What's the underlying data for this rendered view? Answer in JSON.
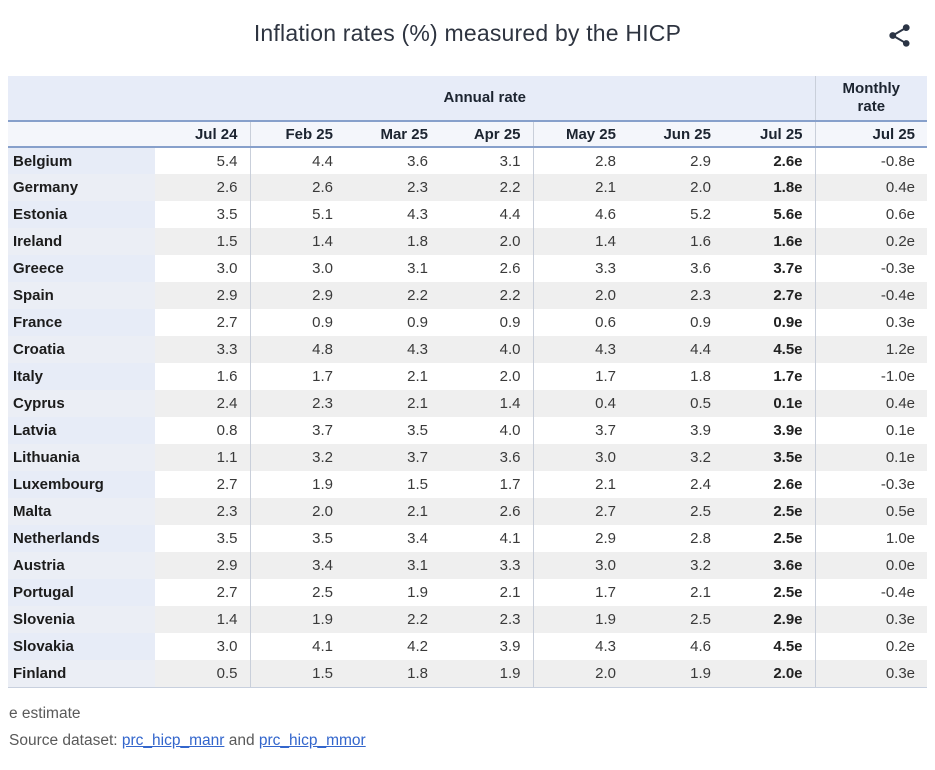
{
  "header": {
    "share_icon": "share-icon"
  },
  "footnote": "e estimate",
  "source": {
    "prefix": "Source dataset: ",
    "link1": "prc_hicp_manr",
    "separator": " and ",
    "link2": "prc_hicp_mmor"
  },
  "colors": {
    "title": "#2e3440",
    "text": "#333333",
    "band-bg": "#e7ecf8",
    "month-bg": "#f4f6fb",
    "divider": "#87a0cb",
    "stripe": "#efefef",
    "country-odd": "#e7ecf7",
    "country-even": "#ebeef5",
    "sep": "#c9cfda",
    "table-bottom": "#c8d0de",
    "link": "#3366cc",
    "muted": "#595959",
    "icon": "#2b3445"
  },
  "chart_data": {
    "type": "table",
    "title": "Inflation rates (%) measured by the HICP",
    "group_headers": {
      "annual": "Annual rate",
      "monthly": "Monthly rate"
    },
    "annual_columns": [
      "Jul 24",
      "Feb 25",
      "Mar 25",
      "Apr 25",
      "May 25",
      "Jun 25",
      "Jul 25"
    ],
    "monthly_column": "Jul 25",
    "rows": [
      {
        "country": "Belgium",
        "annual": [
          "5.4",
          "4.4",
          "3.6",
          "3.1",
          "2.8",
          "2.9",
          "2.6e"
        ],
        "monthly": "-0.8e"
      },
      {
        "country": "Germany",
        "annual": [
          "2.6",
          "2.6",
          "2.3",
          "2.2",
          "2.1",
          "2.0",
          "1.8e"
        ],
        "monthly": "0.4e"
      },
      {
        "country": "Estonia",
        "annual": [
          "3.5",
          "5.1",
          "4.3",
          "4.4",
          "4.6",
          "5.2",
          "5.6e"
        ],
        "monthly": "0.6e"
      },
      {
        "country": "Ireland",
        "annual": [
          "1.5",
          "1.4",
          "1.8",
          "2.0",
          "1.4",
          "1.6",
          "1.6e"
        ],
        "monthly": "0.2e"
      },
      {
        "country": "Greece",
        "annual": [
          "3.0",
          "3.0",
          "3.1",
          "2.6",
          "3.3",
          "3.6",
          "3.7e"
        ],
        "monthly": "-0.3e"
      },
      {
        "country": "Spain",
        "annual": [
          "2.9",
          "2.9",
          "2.2",
          "2.2",
          "2.0",
          "2.3",
          "2.7e"
        ],
        "monthly": "-0.4e"
      },
      {
        "country": "France",
        "annual": [
          "2.7",
          "0.9",
          "0.9",
          "0.9",
          "0.6",
          "0.9",
          "0.9e"
        ],
        "monthly": "0.3e"
      },
      {
        "country": "Croatia",
        "annual": [
          "3.3",
          "4.8",
          "4.3",
          "4.0",
          "4.3",
          "4.4",
          "4.5e"
        ],
        "monthly": "1.2e"
      },
      {
        "country": "Italy",
        "annual": [
          "1.6",
          "1.7",
          "2.1",
          "2.0",
          "1.7",
          "1.8",
          "1.7e"
        ],
        "monthly": "-1.0e"
      },
      {
        "country": "Cyprus",
        "annual": [
          "2.4",
          "2.3",
          "2.1",
          "1.4",
          "0.4",
          "0.5",
          "0.1e"
        ],
        "monthly": "0.4e"
      },
      {
        "country": "Latvia",
        "annual": [
          "0.8",
          "3.7",
          "3.5",
          "4.0",
          "3.7",
          "3.9",
          "3.9e"
        ],
        "monthly": "0.1e"
      },
      {
        "country": "Lithuania",
        "annual": [
          "1.1",
          "3.2",
          "3.7",
          "3.6",
          "3.0",
          "3.2",
          "3.5e"
        ],
        "monthly": "0.1e"
      },
      {
        "country": "Luxembourg",
        "annual": [
          "2.7",
          "1.9",
          "1.5",
          "1.7",
          "2.1",
          "2.4",
          "2.6e"
        ],
        "monthly": "-0.3e"
      },
      {
        "country": "Malta",
        "annual": [
          "2.3",
          "2.0",
          "2.1",
          "2.6",
          "2.7",
          "2.5",
          "2.5e"
        ],
        "monthly": "0.5e"
      },
      {
        "country": "Netherlands",
        "annual": [
          "3.5",
          "3.5",
          "3.4",
          "4.1",
          "2.9",
          "2.8",
          "2.5e"
        ],
        "monthly": "1.0e"
      },
      {
        "country": "Austria",
        "annual": [
          "2.9",
          "3.4",
          "3.1",
          "3.3",
          "3.0",
          "3.2",
          "3.6e"
        ],
        "monthly": "0.0e"
      },
      {
        "country": "Portugal",
        "annual": [
          "2.7",
          "2.5",
          "1.9",
          "2.1",
          "1.7",
          "2.1",
          "2.5e"
        ],
        "monthly": "-0.4e"
      },
      {
        "country": "Slovenia",
        "annual": [
          "1.4",
          "1.9",
          "2.2",
          "2.3",
          "1.9",
          "2.5",
          "2.9e"
        ],
        "monthly": "0.3e"
      },
      {
        "country": "Slovakia",
        "annual": [
          "3.0",
          "4.1",
          "4.2",
          "3.9",
          "4.3",
          "4.6",
          "4.5e"
        ],
        "monthly": "0.2e"
      },
      {
        "country": "Finland",
        "annual": [
          "0.5",
          "1.5",
          "1.8",
          "1.9",
          "2.0",
          "1.9",
          "2.0e"
        ],
        "monthly": "0.3e"
      }
    ]
  }
}
